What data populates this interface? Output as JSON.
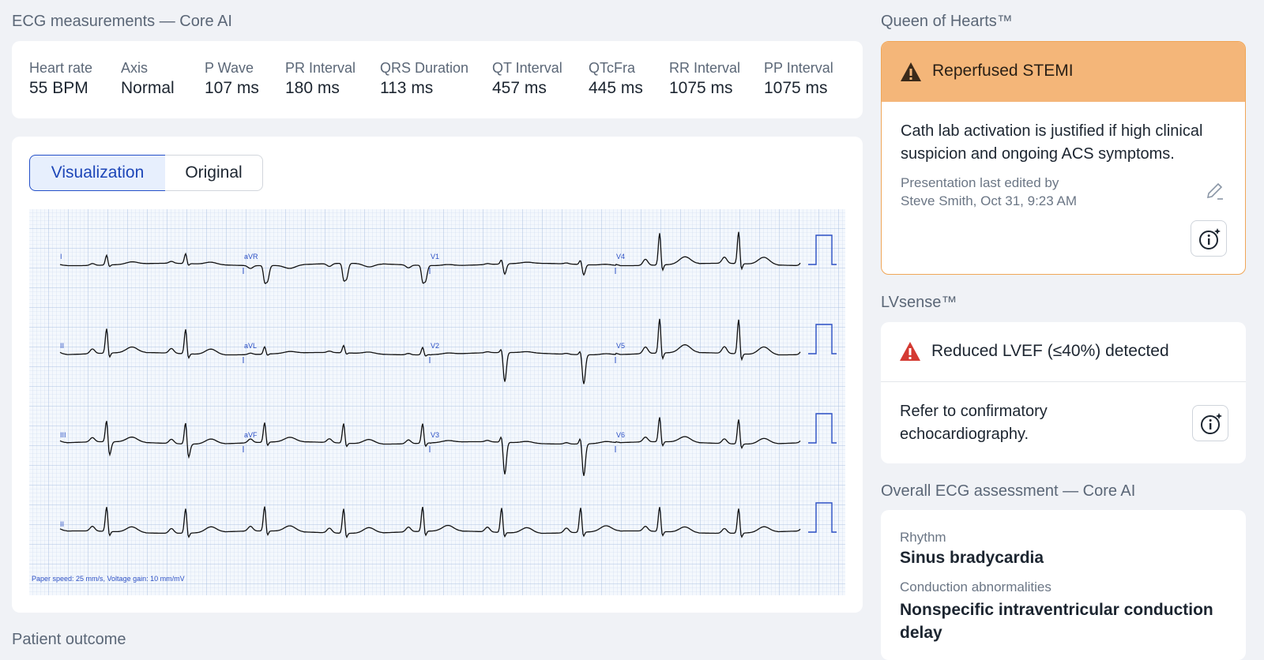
{
  "measurements": {
    "title": "ECG measurements — Core AI",
    "items": [
      {
        "label": "Heart rate",
        "value": "55 BPM"
      },
      {
        "label": "Axis",
        "value": "Normal"
      },
      {
        "label": "P Wave",
        "value": "107 ms"
      },
      {
        "label": "PR Interval",
        "value": "180 ms"
      },
      {
        "label": "QRS Duration",
        "value": "113 ms"
      },
      {
        "label": "QT Interval",
        "value": "457 ms"
      },
      {
        "label": "QTcFra",
        "value": "445 ms"
      },
      {
        "label": "RR Interval",
        "value": "1075 ms"
      },
      {
        "label": "PP Interval",
        "value": "1075 ms"
      }
    ]
  },
  "ecg": {
    "tabs": [
      "Visualization",
      "Original"
    ],
    "leads": [
      [
        "I",
        "aVR",
        "V1",
        "V4"
      ],
      [
        "II",
        "aVL",
        "V2",
        "V5"
      ],
      [
        "III",
        "aVF",
        "V3",
        "V6"
      ]
    ],
    "rhythm_lead": "II",
    "footnote": "Paper speed: 25 mm/s, Voltage gain: 10 mm/mV"
  },
  "queen_of_hearts": {
    "title": "Queen of Hearts™",
    "alert": "Reperfused STEMI",
    "message": "Cath lab activation is justified if high clinical suspicion and ongoing ACS symptoms.",
    "edited_label": "Presentation last edited by",
    "edited_by": "Steve Smith, Oct 31, 9:23 AM"
  },
  "lvsense": {
    "title": "LVsense™",
    "alert": "Reduced LVEF (≤40%) detected",
    "message": "Refer to confirmatory echocardiography."
  },
  "assessment": {
    "title": "Overall ECG assessment — Core AI",
    "items": [
      {
        "label": "Rhythm",
        "value": "Sinus bradycardia"
      },
      {
        "label": "Conduction abnormalities",
        "value": "Nonspecific intraventricular conduction delay"
      }
    ]
  },
  "patient_outcome": {
    "title": "Patient outcome"
  }
}
